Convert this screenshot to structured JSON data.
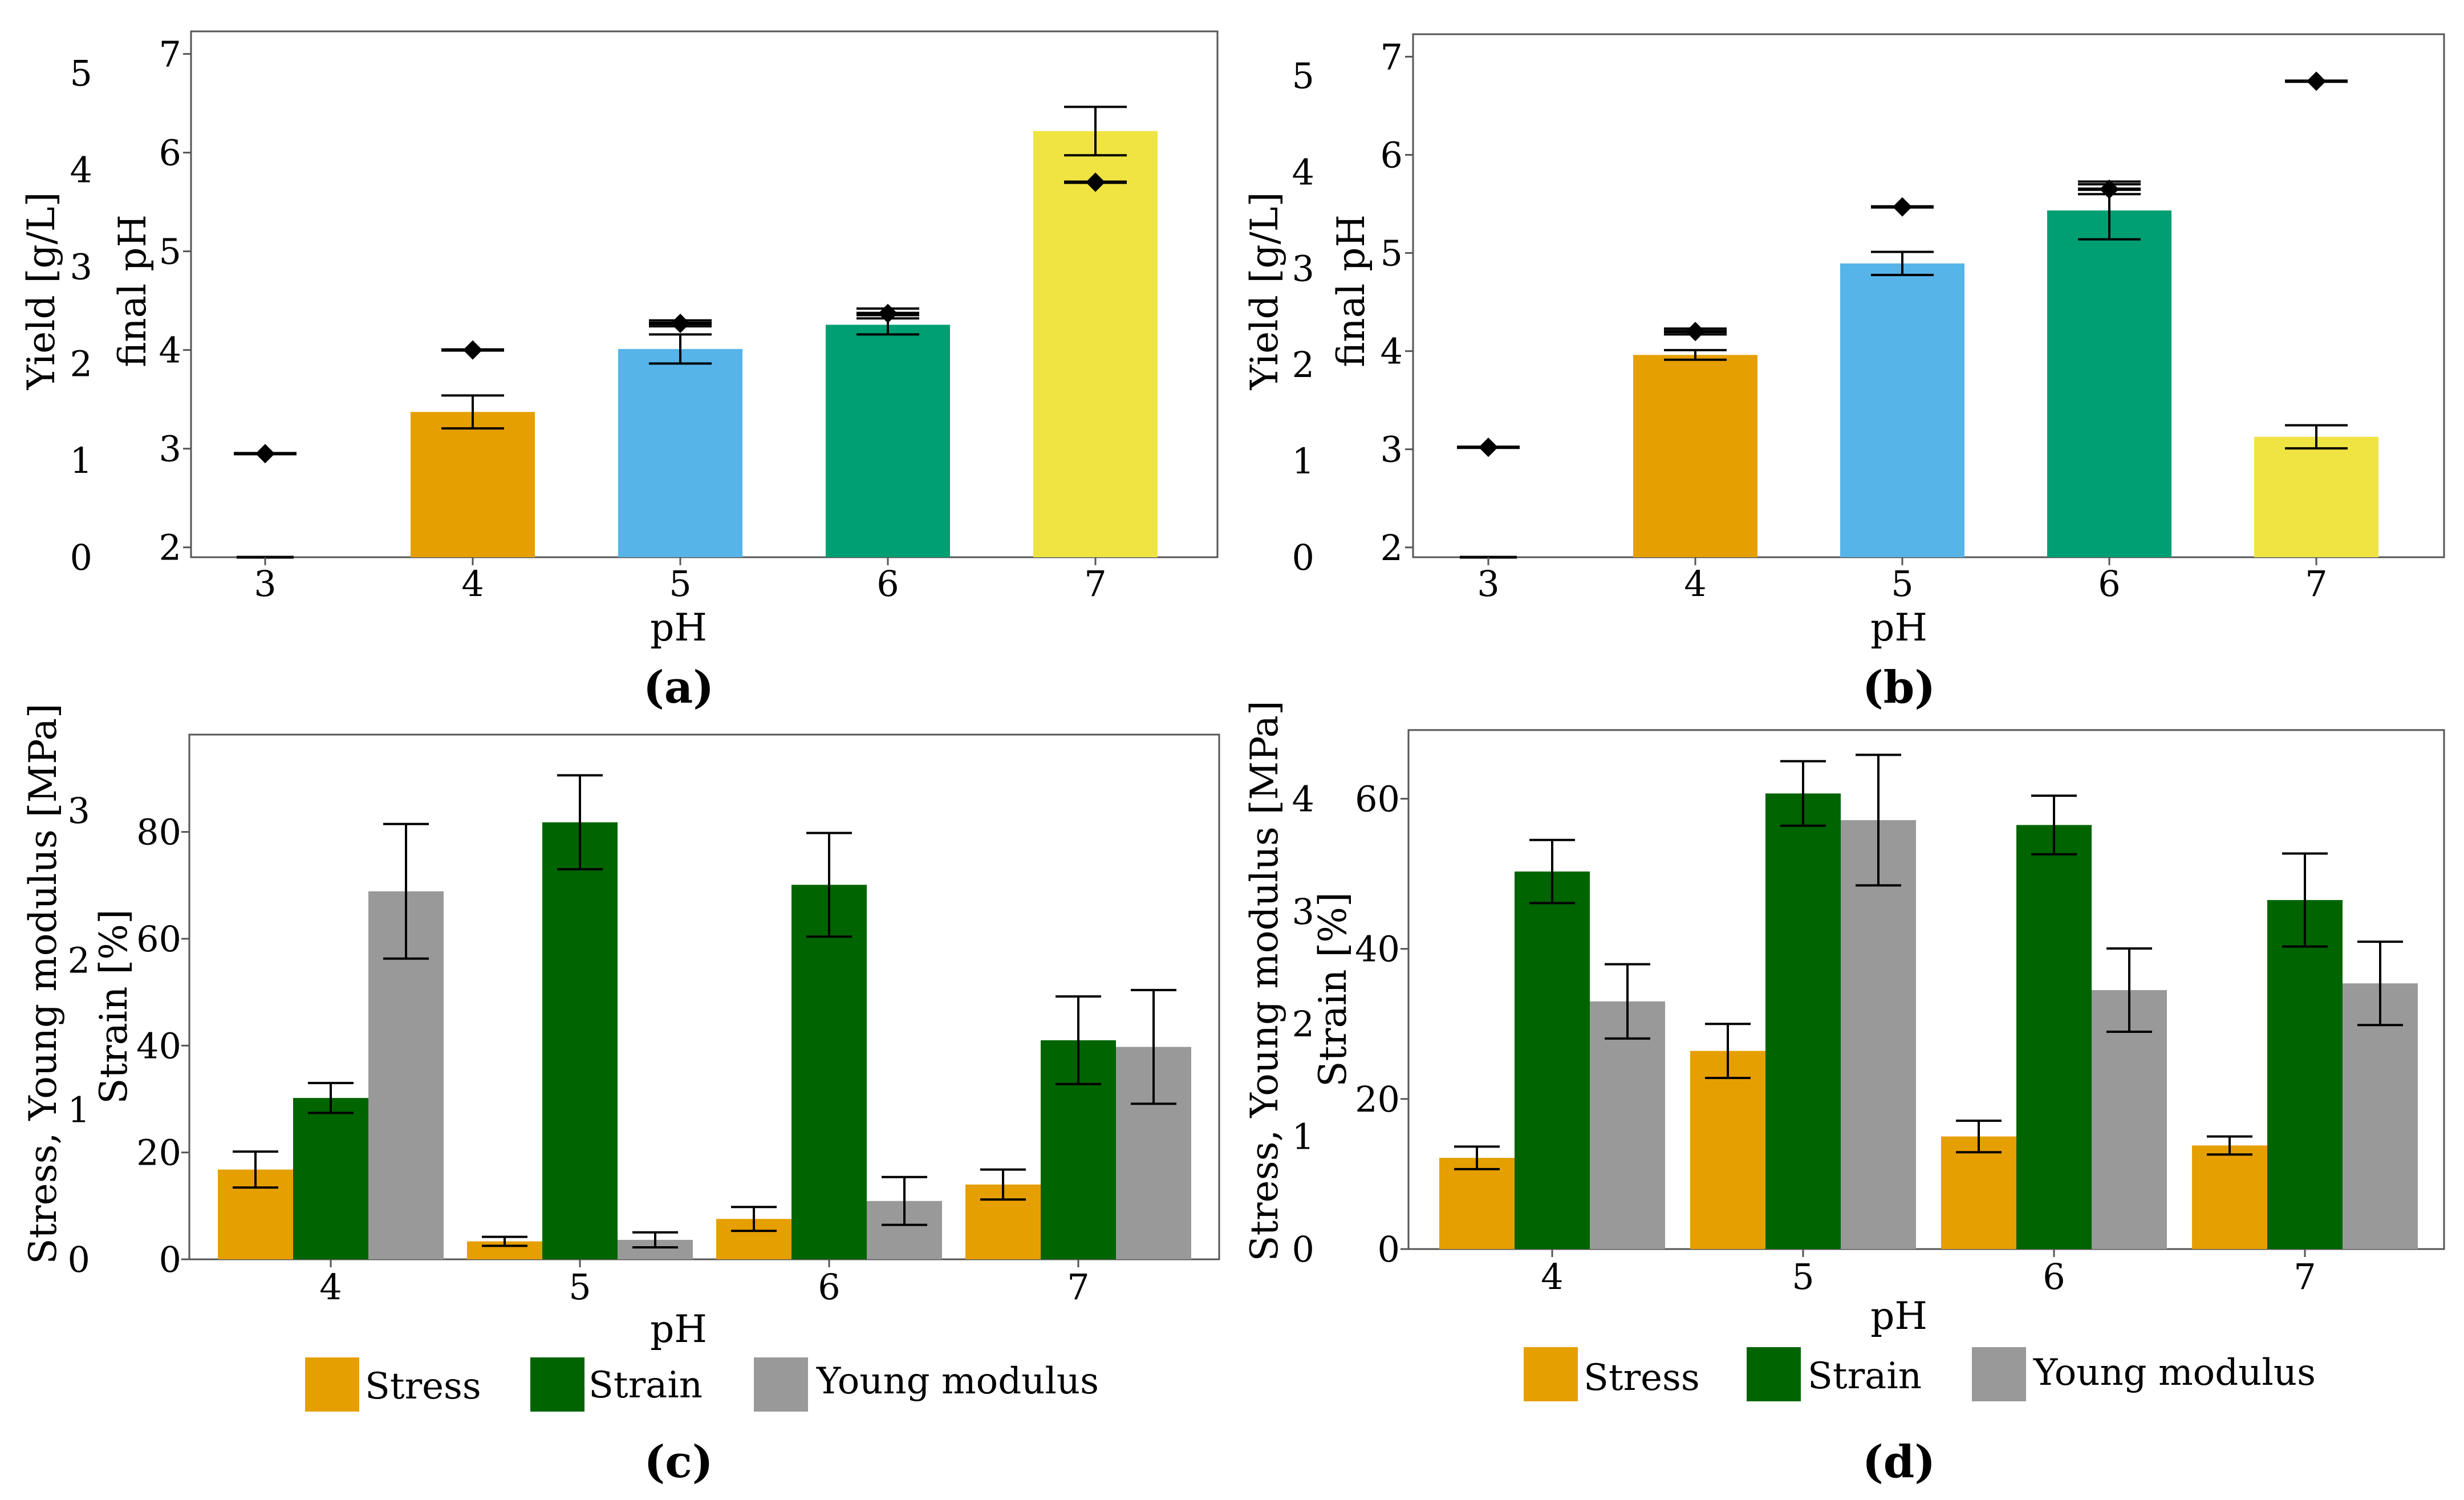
{
  "chart_data": [
    {
      "panel": "(a)",
      "type": "bar",
      "xlabel": "pH",
      "ylabel_left": "Yield [g/L]",
      "ylabel_right": "final pH",
      "categories": [
        "3",
        "4",
        "5",
        "6",
        "7"
      ],
      "yield_ticks": [
        "0",
        "1",
        "2",
        "3",
        "4",
        "5"
      ],
      "final_ph_ticks": [
        "2",
        "3",
        "4",
        "5",
        "6",
        "7"
      ],
      "yield_range": [
        0,
        5.4
      ],
      "final_ph_range": [
        1.9,
        7.2
      ],
      "series": [
        {
          "name": "Yield",
          "values": [
            0.0,
            1.5,
            2.15,
            2.4,
            4.4
          ],
          "errors": [
            0.0,
            0.17,
            0.15,
            0.1,
            0.25
          ],
          "colors": [
            "#E69F00",
            "#E69F00",
            "#56B4E9",
            "#009E73",
            "#F0E442"
          ]
        },
        {
          "name": "final pH",
          "values": [
            2.95,
            4.0,
            4.27,
            4.37,
            5.7
          ],
          "errors": [
            0.0,
            0.0,
            0.03,
            0.05,
            0.0
          ]
        }
      ]
    },
    {
      "panel": "(b)",
      "type": "bar",
      "xlabel": "pH",
      "ylabel_left": "Yield [g/L]",
      "ylabel_right": "final pH",
      "categories": [
        "3",
        "4",
        "5",
        "6",
        "7"
      ],
      "yield_ticks": [
        "0",
        "1",
        "2",
        "3",
        "4",
        "5"
      ],
      "final_ph_ticks": [
        "2",
        "3",
        "4",
        "5",
        "6",
        "7"
      ],
      "yield_range": [
        0,
        5.4
      ],
      "final_ph_range": [
        1.9,
        7.2
      ],
      "series": [
        {
          "name": "Yield",
          "values": [
            0.0,
            2.1,
            3.05,
            3.6,
            1.25
          ],
          "errors": [
            0.0,
            0.05,
            0.12,
            0.3,
            0.12
          ],
          "colors": [
            "#E69F00",
            "#E69F00",
            "#56B4E9",
            "#009E73",
            "#F0E442"
          ]
        },
        {
          "name": "final pH",
          "values": [
            3.02,
            4.2,
            5.47,
            5.65,
            6.75
          ],
          "errors": [
            0.0,
            0.03,
            0.0,
            0.05,
            0.0
          ]
        }
      ]
    },
    {
      "panel": "(c)",
      "type": "bar",
      "xlabel": "pH",
      "ylabel_left": "Stress, Young modulus [MPa]",
      "ylabel_right": "Strain [%]",
      "categories": [
        "4",
        "5",
        "6",
        "7"
      ],
      "mpa_ticks": [
        "0",
        "1",
        "2",
        "3"
      ],
      "strain_ticks": [
        "0",
        "20",
        "40",
        "60",
        "80"
      ],
      "mpa_range": [
        0,
        3.5
      ],
      "strain_range": [
        0,
        98
      ],
      "series": [
        {
          "name": "Stress",
          "axis": "mpa",
          "color": "#E69F00",
          "values": [
            0.6,
            0.12,
            0.27,
            0.5
          ],
          "errors": [
            0.12,
            0.03,
            0.08,
            0.1
          ]
        },
        {
          "name": "Strain",
          "axis": "strain",
          "color": "#006400",
          "values": [
            30.2,
            81.8,
            70.1,
            41.0
          ],
          "errors": [
            2.8,
            8.8,
            9.7,
            8.2
          ]
        },
        {
          "name": "Young modulus",
          "axis": "mpa",
          "color": "#999999",
          "values": [
            2.46,
            0.13,
            0.39,
            1.42
          ],
          "errors": [
            0.45,
            0.05,
            0.16,
            0.38
          ]
        }
      ]
    },
    {
      "panel": "(d)",
      "type": "bar",
      "xlabel": "pH",
      "ylabel_left": "Stress, Young modulus [MPa]",
      "ylabel_right": "Strain [%]",
      "categories": [
        "4",
        "5",
        "6",
        "7"
      ],
      "mpa_ticks": [
        "0",
        "1",
        "2",
        "3",
        "4"
      ],
      "strain_ticks": [
        "0",
        "20",
        "40",
        "60"
      ],
      "mpa_range": [
        0,
        4.6
      ],
      "strain_range": [
        0,
        69
      ],
      "series": [
        {
          "name": "Stress",
          "axis": "mpa",
          "color": "#E69F00",
          "values": [
            0.81,
            1.76,
            1.0,
            0.92
          ],
          "errors": [
            0.1,
            0.24,
            0.14,
            0.08
          ]
        },
        {
          "name": "Strain",
          "axis": "strain",
          "color": "#006400",
          "values": [
            50.3,
            60.7,
            56.5,
            46.5
          ],
          "errors": [
            4.2,
            4.3,
            3.9,
            6.2
          ]
        },
        {
          "name": "Young modulus",
          "axis": "mpa",
          "color": "#999999",
          "values": [
            2.2,
            3.81,
            2.3,
            2.36
          ],
          "errors": [
            0.33,
            0.58,
            0.37,
            0.37
          ]
        }
      ]
    }
  ],
  "legend": {
    "stress_label": "Stress",
    "strain_label": "Strain",
    "young_label": "Young modulus"
  }
}
